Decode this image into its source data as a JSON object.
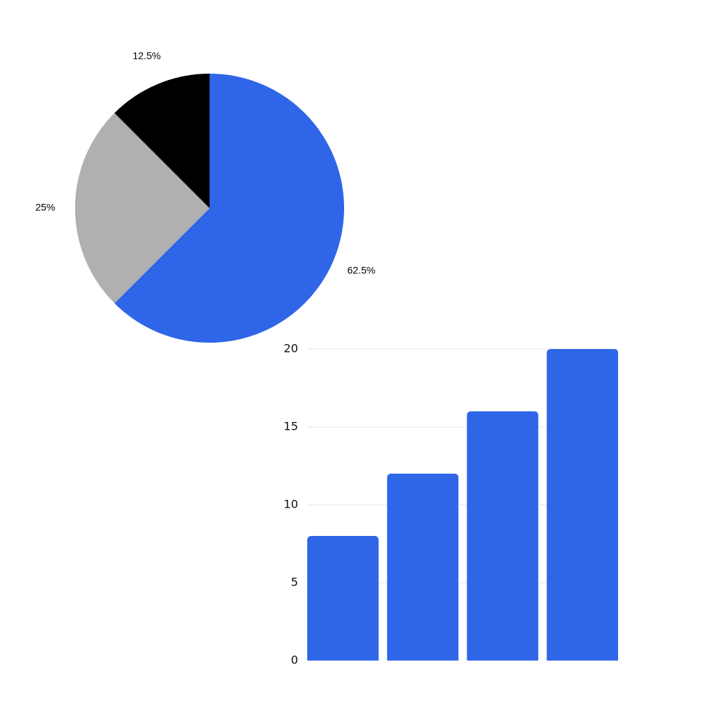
{
  "chart_data": [
    {
      "type": "pie",
      "title": "",
      "slices": [
        {
          "label": "62.5%",
          "value": 62.5,
          "color": "#2f66e8"
        },
        {
          "label": "25%",
          "value": 25,
          "color": "#b1b0b0"
        },
        {
          "label": "12.5%",
          "value": 12.5,
          "color": "#000000"
        }
      ]
    },
    {
      "type": "bar",
      "title": "",
      "xlabel": "",
      "ylabel": "",
      "categories": [
        "",
        "",
        "",
        ""
      ],
      "values": [
        8,
        12,
        16,
        20
      ],
      "ylim": [
        0,
        20
      ],
      "yticks": [
        "0",
        "5",
        "10",
        "15",
        "20"
      ],
      "grid": true,
      "bar_color": "#2f66e8"
    }
  ]
}
